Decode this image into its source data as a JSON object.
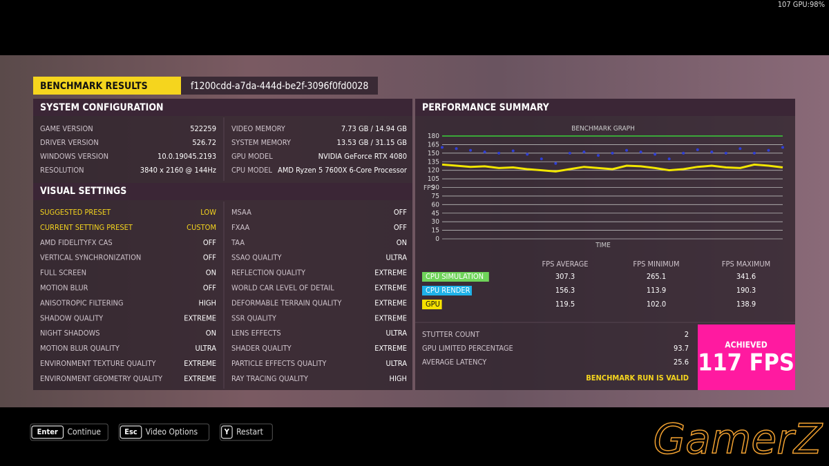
{
  "overlay": "107 GPU:98%",
  "header": {
    "title": "BENCHMARK RESULTS",
    "run_id": "f1200cdd-a7da-444d-be2f-3096f0fd0028"
  },
  "system_configuration": {
    "title": "SYSTEM CONFIGURATION",
    "left": [
      [
        "GAME VERSION",
        "522259"
      ],
      [
        "DRIVER VERSION",
        "526.72"
      ],
      [
        "WINDOWS VERSION",
        "10.0.19045.2193"
      ],
      [
        "RESOLUTION",
        "3840 x 2160 @ 144Hz"
      ]
    ],
    "right": [
      [
        "VIDEO MEMORY",
        "7.73 GB / 14.94 GB"
      ],
      [
        "SYSTEM MEMORY",
        "13.53 GB / 31.15 GB"
      ],
      [
        "GPU MODEL",
        "NVIDIA GeForce RTX 4080"
      ],
      [
        "CPU MODEL",
        "AMD Ryzen 5 7600X 6-Core Processor"
      ]
    ]
  },
  "visual_settings": {
    "title": "VISUAL SETTINGS",
    "left": [
      [
        "SUGGESTED PRESET",
        "LOW"
      ],
      [
        "CURRENT SETTING PRESET",
        "CUSTOM"
      ],
      [
        "AMD FIDELITYFX CAS",
        "OFF"
      ],
      [
        "VERTICAL SYNCHRONIZATION",
        "OFF"
      ],
      [
        "FULL SCREEN",
        "ON"
      ],
      [
        "MOTION BLUR",
        "OFF"
      ],
      [
        "ANISOTROPIC FILTERING",
        "HIGH"
      ],
      [
        "SHADOW QUALITY",
        "EXTREME"
      ],
      [
        "NIGHT SHADOWS",
        "ON"
      ],
      [
        "MOTION BLUR QUALITY",
        "ULTRA"
      ],
      [
        "ENVIRONMENT TEXTURE QUALITY",
        "EXTREME"
      ],
      [
        "ENVIRONMENT GEOMETRY QUALITY",
        "EXTREME"
      ]
    ],
    "right": [
      [
        "MSAA",
        "OFF"
      ],
      [
        "FXAA",
        "OFF"
      ],
      [
        "TAA",
        "ON"
      ],
      [
        "SSAO QUALITY",
        "ULTRA"
      ],
      [
        "REFLECTION QUALITY",
        "EXTREME"
      ],
      [
        "WORLD CAR LEVEL OF DETAIL",
        "EXTREME"
      ],
      [
        "DEFORMABLE TERRAIN QUALITY",
        "EXTREME"
      ],
      [
        "SSR QUALITY",
        "EXTREME"
      ],
      [
        "LENS EFFECTS",
        "ULTRA"
      ],
      [
        "SHADER QUALITY",
        "EXTREME"
      ],
      [
        "PARTICLE EFFECTS QUALITY",
        "ULTRA"
      ],
      [
        "RAY TRACING QUALITY",
        "HIGH"
      ]
    ]
  },
  "performance_summary": {
    "title": "PERFORMANCE SUMMARY",
    "chart_data": {
      "type": "line",
      "title": "BENCHMARK GRAPH",
      "x_label": "TIME",
      "y_label": "FPS",
      "ylim": [
        0,
        180
      ],
      "yticks": [
        0,
        15,
        30,
        45,
        60,
        75,
        90,
        105,
        120,
        135,
        150,
        165,
        180
      ],
      "grid": true,
      "series": [
        {
          "color": "#3ad13a",
          "values": [
            180,
            180,
            180,
            180,
            180,
            180,
            180,
            180,
            180,
            180,
            180,
            180,
            180,
            180,
            180,
            180,
            180,
            180,
            180,
            180,
            180,
            180,
            180,
            180,
            180
          ]
        },
        {
          "color": "#2f3fd6",
          "values": [
            160,
            158,
            155,
            152,
            150,
            154,
            148,
            140,
            132,
            150,
            152,
            146,
            150,
            155,
            152,
            148,
            140,
            150,
            156,
            152,
            150,
            158,
            150,
            155,
            160
          ]
        },
        {
          "color": "#f2e600",
          "values": [
            130,
            128,
            126,
            127,
            124,
            125,
            122,
            120,
            118,
            122,
            126,
            124,
            122,
            128,
            127,
            124,
            120,
            122,
            126,
            128,
            125,
            124,
            130,
            128,
            125
          ]
        }
      ]
    },
    "table": {
      "columns": [
        "FPS AVERAGE",
        "FPS MINIMUM",
        "FPS MAXIMUM"
      ],
      "rows": [
        {
          "name": "CPU SIMULATION",
          "color": "#6fd45a",
          "values": [
            "307.3",
            "265.1",
            "341.6"
          ]
        },
        {
          "name": "CPU RENDER",
          "color": "#1fb2e8",
          "values": [
            "156.3",
            "113.9",
            "190.3"
          ]
        },
        {
          "name": "GPU",
          "color": "#f5e000",
          "values": [
            "119.5",
            "102.0",
            "138.9"
          ]
        }
      ]
    },
    "stats": [
      [
        "STUTTER COUNT",
        "2"
      ],
      [
        "GPU LIMITED PERCENTAGE",
        "93.7"
      ],
      [
        "AVERAGE LATENCY",
        "25.6"
      ]
    ],
    "valid": "BENCHMARK RUN IS VALID",
    "achieved": {
      "label": "ACHIEVED",
      "value": "117 FPS"
    }
  },
  "footer": {
    "hints": [
      {
        "key": "Enter",
        "label": "Continue"
      },
      {
        "key": "Esc",
        "label": "Video Options"
      },
      {
        "key": "Y",
        "label": "Restart"
      }
    ]
  },
  "watermark": "GamerZ"
}
